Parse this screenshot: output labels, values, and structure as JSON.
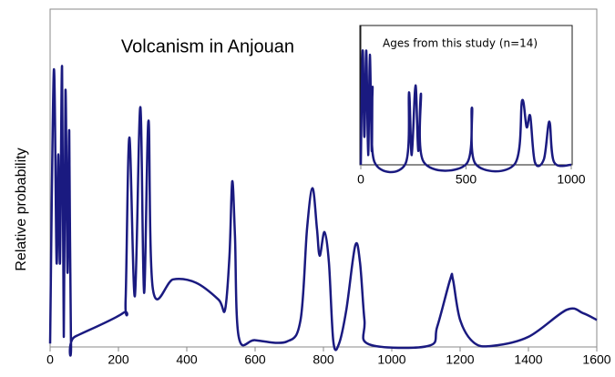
{
  "chart_data": [
    {
      "type": "line",
      "title": "Volcanism in Anjouan",
      "y_label": "Relative probability",
      "color": "#1a1a80",
      "x": [
        0,
        11,
        19,
        24,
        29,
        35,
        40,
        45,
        51,
        56,
        61,
        72,
        213,
        221,
        232,
        248,
        264,
        275,
        288,
        301,
        360,
        427,
        493,
        512,
        525,
        533,
        541,
        552,
        600,
        693,
        733,
        752,
        768,
        781,
        789,
        803,
        816,
        829,
        845,
        867,
        893,
        907,
        920,
        933,
        1107,
        1133,
        1171,
        1179,
        1200,
        1240,
        1293,
        1400,
        1512,
        1560,
        1600
      ],
      "values": [
        0.01,
        0.82,
        0.25,
        0.57,
        0.25,
        0.83,
        0.03,
        0.76,
        0.22,
        0.64,
        0.02,
        0.03,
        0.1,
        0.14,
        0.62,
        0.15,
        0.71,
        0.16,
        0.67,
        0.17,
        0.2,
        0.19,
        0.14,
        0.11,
        0.27,
        0.49,
        0.33,
        0.03,
        0.02,
        0.016,
        0.08,
        0.35,
        0.47,
        0.35,
        0.27,
        0.34,
        0.25,
        0.016,
        0.008,
        0.11,
        0.3,
        0.25,
        0.08,
        0.008,
        0.003,
        0.06,
        0.2,
        0.2,
        0.08,
        0.013,
        0.003,
        0.03,
        0.11,
        0.1,
        0.08
      ],
      "xlim": [
        0,
        1600
      ],
      "xticks": [
        0,
        200,
        400,
        600,
        800,
        1000,
        1200,
        1400,
        1600
      ],
      "ylim": [
        0,
        1
      ]
    },
    {
      "type": "line",
      "title": "Ages from this study (n=14)",
      "color": "#1a1a80",
      "x": [
        0,
        9,
        17,
        26,
        35,
        43,
        52,
        56,
        65,
        212,
        229,
        242,
        260,
        273,
        286,
        299,
        502,
        528,
        545,
        732,
        766,
        788,
        805,
        827,
        870,
        896,
        918,
        1000
      ],
      "values": [
        0,
        0.82,
        0.2,
        0.82,
        0.07,
        0.79,
        0.1,
        0.56,
        0.02,
        0.007,
        0.52,
        0.07,
        0.57,
        0.1,
        0.51,
        0.02,
        0.007,
        0.41,
        0.007,
        0.007,
        0.46,
        0.27,
        0.35,
        0.02,
        0.04,
        0.31,
        0.02,
        0
      ],
      "xlim": [
        0,
        1000
      ],
      "xticks": [
        0,
        500,
        1000
      ],
      "ylim": [
        0,
        1
      ]
    }
  ]
}
